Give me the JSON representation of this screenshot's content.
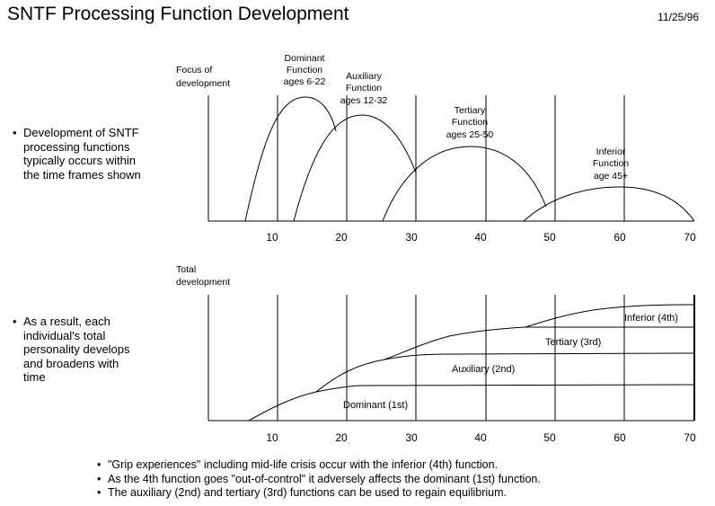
{
  "title": "SNTF Processing Function Development",
  "date": "11/25/96",
  "top_section": {
    "bullet": "Development of SNTF\nprocessing functions\ntypically occurs within\nthe time frames shown",
    "y_label": "Focus of\ndevelopment",
    "function_labels": [
      {
        "text": "Dominant\nFunction\nages 6-22"
      },
      {
        "text": "Auxiliary\nFunction\nages 12-32"
      },
      {
        "text": "Tertiary\nFunction\nages 25-50"
      },
      {
        "text": "Inferior\nFunction\nage 45+"
      }
    ]
  },
  "bottom_section": {
    "bullet": "As a result, each\nindividual's total\npersonality develops\nand broadens with\ntime",
    "y_label": "Total\ndevelopment",
    "curve_labels": [
      "Dominant (1st)",
      "Auxiliary (2nd)",
      "Tertiary (3rd)",
      "Inferior (4th)"
    ]
  },
  "x_axis_ticks": [
    "10",
    "20",
    "30",
    "40",
    "50",
    "60",
    "70"
  ],
  "notes": [
    "\"Grip experiences\" including mid-life crisis occur with the inferior (4th) function.",
    "As the 4th function goes \"out-of-control\" it adversely affects the dominant (1st) function.",
    "The auxiliary (2nd) and tertiary (3rd) functions can be used to regain equilibrium."
  ]
}
